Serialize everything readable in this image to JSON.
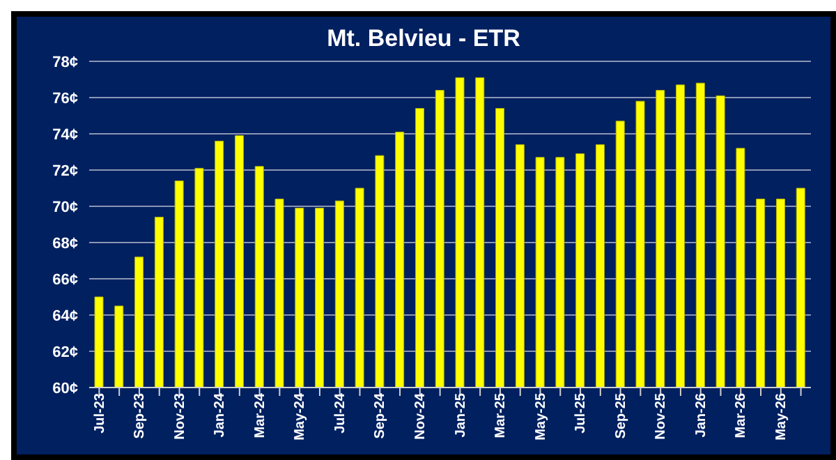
{
  "chart_data": {
    "type": "bar",
    "title": "Mt. Belvieu - ETR",
    "categories": [
      "Jul-23",
      null,
      "Sep-23",
      null,
      "Nov-23",
      null,
      "Jan-24",
      null,
      "Mar-24",
      null,
      "May-24",
      null,
      "Jul-24",
      null,
      "Sep-24",
      null,
      "Nov-24",
      null,
      "Jan-25",
      null,
      "Mar-25",
      null,
      "May-25",
      null,
      "Jul-25",
      null,
      "Sep-25",
      null,
      "Nov-25",
      null,
      "Jan-26",
      null,
      "Mar-26",
      null,
      "May-26",
      null
    ],
    "values": [
      65.0,
      64.5,
      67.2,
      69.4,
      71.4,
      72.1,
      73.6,
      73.9,
      72.2,
      70.4,
      69.9,
      69.9,
      70.3,
      71.0,
      72.8,
      74.1,
      75.4,
      76.4,
      77.1,
      77.1,
      75.4,
      73.4,
      72.7,
      72.7,
      72.9,
      73.4,
      74.7,
      75.8,
      76.4,
      76.7,
      76.8,
      76.1,
      73.2,
      70.4,
      70.4,
      71.0
    ],
    "color": "#ffff00",
    "ylim": [
      60,
      78
    ],
    "yticks": [
      {
        "value": 60,
        "label": "60¢"
      },
      {
        "value": 62,
        "label": "62¢"
      },
      {
        "value": 64,
        "label": "64¢"
      },
      {
        "value": 66,
        "label": "66¢"
      },
      {
        "value": 68,
        "label": "68¢"
      },
      {
        "value": 70,
        "label": "70¢"
      },
      {
        "value": 72,
        "label": "72¢"
      },
      {
        "value": 74,
        "label": "74¢"
      },
      {
        "value": 76,
        "label": "76¢"
      },
      {
        "value": 78,
        "label": "78¢"
      }
    ],
    "grid": "y"
  }
}
